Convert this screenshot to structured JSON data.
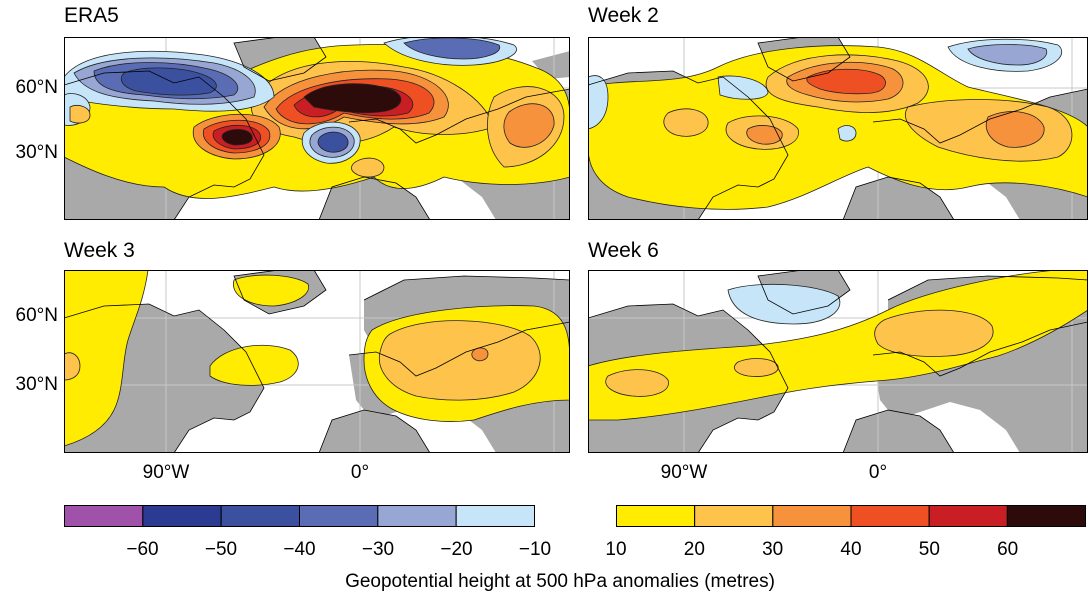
{
  "panels": [
    {
      "title": "ERA5"
    },
    {
      "title": "Week 2"
    },
    {
      "title": "Week 3"
    },
    {
      "title": "Week 6"
    }
  ],
  "latitude_labels": [
    "60°N",
    "30°N"
  ],
  "longitude_labels": [
    "90°W",
    "0°"
  ],
  "colorbar_negative": {
    "colors": [
      "#a051a9",
      "#2a3b91",
      "#3b519f",
      "#5a6cb4",
      "#98a6d4",
      "#c6e5f8"
    ],
    "ticks": [
      "−60",
      "−50",
      "−40",
      "−30",
      "−20",
      "−10"
    ]
  },
  "colorbar_positive": {
    "colors": [
      "#ffec00",
      "#fdc34a",
      "#f7923c",
      "#ef5023",
      "#c81e24",
      "#2e0b0b"
    ],
    "ticks": [
      "10",
      "20",
      "30",
      "40",
      "50",
      "60"
    ]
  },
  "colorbar_label": "Geopotential height at 500 hPa anomalies (metres)",
  "colors": {
    "land": "#a9a9a9",
    "ocean": "#ffffff",
    "grid": "#c8c8c8",
    "contour": "#222222"
  }
}
